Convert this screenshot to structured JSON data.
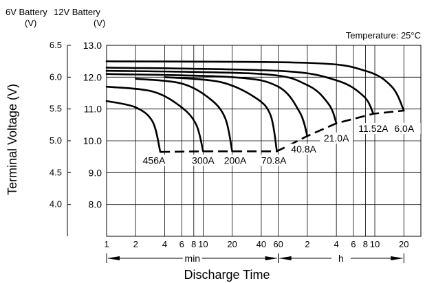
{
  "chart_data": {
    "type": "line",
    "title": "",
    "ylabel": "Terminal Voltage (V)",
    "xlabel": "Discharge Time",
    "annotation": "Temperature:  25°C",
    "y_axis_6v": {
      "header": "6V Battery",
      "unit": "(V)",
      "ticks": [
        "6.5",
        "6.0",
        "5.5",
        "5.0",
        "4.5",
        "4.0"
      ],
      "values": [
        6.5,
        6.0,
        5.5,
        5.0,
        4.5,
        4.0
      ]
    },
    "y_axis_12v": {
      "header": "12V Battery",
      "unit": "(V)",
      "ticks": [
        "13.0",
        "12.0",
        "11.0",
        "10.0",
        "9.0",
        "8.0"
      ],
      "values": [
        13.0,
        12.0,
        11.0,
        10.0,
        9.0,
        8.0
      ]
    },
    "ylim": [
      7.0,
      13.0
    ],
    "x_ticks_min": {
      "labels": [
        "1",
        "2",
        "4",
        "6",
        "8",
        "10",
        "20",
        "40",
        "60"
      ],
      "minutes": [
        1,
        2,
        4,
        6,
        8,
        10,
        20,
        40,
        60
      ]
    },
    "x_ticks_h": {
      "labels": [
        "2",
        "4",
        "6",
        "8",
        "10",
        "20"
      ],
      "minutes": [
        120,
        240,
        360,
        480,
        600,
        1200
      ]
    },
    "x_range_min": {
      "label": "min",
      "from_minutes": 1,
      "to_minutes": 60
    },
    "x_range_h": {
      "label": "h",
      "from_minutes": 60,
      "to_minutes": 1200
    },
    "xlim_minutes": [
      1,
      1800
    ],
    "series": [
      {
        "name": "456A",
        "points": [
          [
            1,
            11.25
          ],
          [
            2,
            11.05
          ],
          [
            3,
            10.6
          ],
          [
            3.6,
            9.65
          ]
        ]
      },
      {
        "name": "300A",
        "points": [
          [
            1,
            11.7
          ],
          [
            3,
            11.55
          ],
          [
            6,
            11.05
          ],
          [
            8.5,
            10.5
          ],
          [
            10,
            9.67
          ]
        ]
      },
      {
        "name": "200A",
        "points": [
          [
            2,
            11.95
          ],
          [
            6,
            11.8
          ],
          [
            12,
            11.3
          ],
          [
            17,
            10.7
          ],
          [
            20,
            9.67
          ]
        ]
      },
      {
        "name": "70.8A",
        "points": [
          [
            4,
            12.0
          ],
          [
            15,
            11.85
          ],
          [
            35,
            11.35
          ],
          [
            50,
            10.8
          ],
          [
            58,
            9.67
          ]
        ]
      },
      {
        "name": "40.8A",
        "points": [
          [
            1,
            12.1
          ],
          [
            20,
            12.0
          ],
          [
            60,
            11.7
          ],
          [
            100,
            10.9
          ],
          [
            120,
            10.15
          ]
        ]
      },
      {
        "name": "21.0A",
        "points": [
          [
            1,
            12.2
          ],
          [
            40,
            12.1
          ],
          [
            120,
            11.75
          ],
          [
            200,
            11.15
          ],
          [
            240,
            10.55
          ]
        ]
      },
      {
        "name": "11.52A",
        "points": [
          [
            1,
            12.3
          ],
          [
            60,
            12.2
          ],
          [
            240,
            11.9
          ],
          [
            460,
            11.4
          ],
          [
            580,
            10.85
          ]
        ]
      },
      {
        "name": "6.0A",
        "points": [
          [
            1,
            12.5
          ],
          [
            120,
            12.45
          ],
          [
            480,
            12.2
          ],
          [
            900,
            11.7
          ],
          [
            1200,
            10.95
          ]
        ]
      }
    ],
    "cutoff_line": [
      [
        3.6,
        9.65
      ],
      [
        10,
        9.67
      ],
      [
        20,
        9.67
      ],
      [
        58,
        9.67
      ],
      [
        120,
        10.15
      ],
      [
        240,
        10.55
      ],
      [
        580,
        10.85
      ],
      [
        1200,
        10.95
      ]
    ],
    "series_labels": [
      {
        "text": "456A",
        "at": [
          3.1,
          9.3
        ]
      },
      {
        "text": "300A",
        "at": [
          10.0,
          9.3
        ]
      },
      {
        "text": "200A",
        "at": [
          21.5,
          9.3
        ]
      },
      {
        "text": "70.8A",
        "at": [
          54,
          9.3
        ]
      },
      {
        "text": "40.8A",
        "at": [
          110,
          9.65
        ]
      },
      {
        "text": "21.0A",
        "at": [
          240,
          10.0
        ]
      },
      {
        "text": "11.52A",
        "at": [
          580,
          10.3
        ]
      },
      {
        "text": "6.0A",
        "at": [
          1210,
          10.3
        ]
      }
    ]
  }
}
